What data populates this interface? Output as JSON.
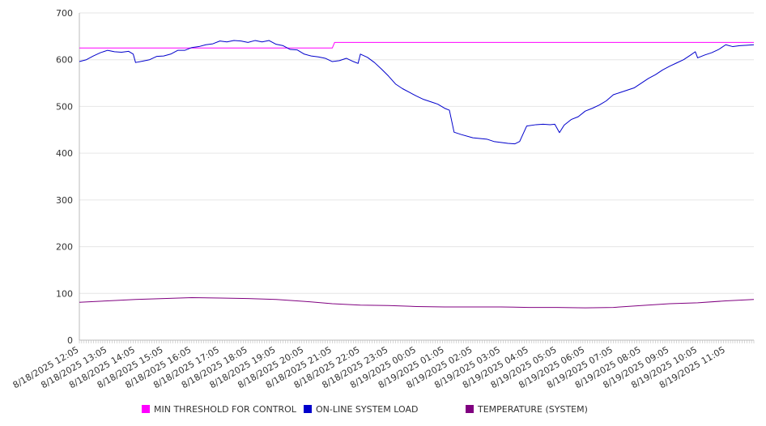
{
  "colors": {
    "background": "#ffffff",
    "grid": "#e6e6e6",
    "axis": "#bbbbbb",
    "text": "#333333"
  },
  "chart_data": {
    "type": "line",
    "title": "",
    "xlabel": "",
    "ylabel": "",
    "ylim": [
      0,
      700
    ],
    "yticks": [
      0,
      100,
      200,
      300,
      400,
      500,
      600,
      700
    ],
    "grid": true,
    "legend_position": "bottom",
    "x_tick_labels": [
      "8/18/2025 12:05",
      "8/18/2025 13:05",
      "8/18/2025 14:05",
      "8/18/2025 15:05",
      "8/18/2025 16:05",
      "8/18/2025 17:05",
      "8/18/2025 18:05",
      "8/18/2025 19:05",
      "8/18/2025 20:05",
      "8/18/2025 21:05",
      "8/18/2025 22:05",
      "8/18/2025 23:05",
      "8/19/2025 00:05",
      "8/19/2025 01:05",
      "8/19/2025 02:05",
      "8/19/2025 03:05",
      "8/19/2025 04:05",
      "8/19/2025 05:05",
      "8/19/2025 06:05",
      "8/19/2025 07:05",
      "8/19/2025 08:05",
      "8/19/2025 09:05",
      "8/19/2025 10:05",
      "8/19/2025 11:05"
    ],
    "series": [
      {
        "name": "MIN THRESHOLD FOR CONTROL",
        "color": "#ff00ff",
        "points": [
          [
            "8/18/2025 12:05",
            625
          ],
          [
            "8/18/2025 21:05",
            625
          ],
          [
            "8/18/2025 21:10",
            637
          ],
          [
            "8/19/2025 12:05",
            637
          ]
        ]
      },
      {
        "name": "ON-LINE SYSTEM LOAD",
        "color": "#0000cc",
        "points": [
          [
            "8/18/2025 12:05",
            596
          ],
          [
            "8/18/2025 12:20",
            600
          ],
          [
            "8/18/2025 12:35",
            608
          ],
          [
            "8/18/2025 12:50",
            615
          ],
          [
            "8/18/2025 13:05",
            620
          ],
          [
            "8/18/2025 13:20",
            617
          ],
          [
            "8/18/2025 13:35",
            616
          ],
          [
            "8/18/2025 13:50",
            618
          ],
          [
            "8/18/2025 14:00",
            612
          ],
          [
            "8/18/2025 14:05",
            594
          ],
          [
            "8/18/2025 14:20",
            597
          ],
          [
            "8/18/2025 14:35",
            600
          ],
          [
            "8/18/2025 14:50",
            607
          ],
          [
            "8/18/2025 15:05",
            608
          ],
          [
            "8/18/2025 15:20",
            612
          ],
          [
            "8/18/2025 15:35",
            620
          ],
          [
            "8/18/2025 15:50",
            620
          ],
          [
            "8/18/2025 16:05",
            626
          ],
          [
            "8/18/2025 16:20",
            628
          ],
          [
            "8/18/2025 16:35",
            632
          ],
          [
            "8/18/2025 16:50",
            634
          ],
          [
            "8/18/2025 17:05",
            640
          ],
          [
            "8/18/2025 17:20",
            638
          ],
          [
            "8/18/2025 17:35",
            641
          ],
          [
            "8/18/2025 17:50",
            640
          ],
          [
            "8/18/2025 18:05",
            637
          ],
          [
            "8/18/2025 18:20",
            641
          ],
          [
            "8/18/2025 18:35",
            638
          ],
          [
            "8/18/2025 18:50",
            641
          ],
          [
            "8/18/2025 19:05",
            633
          ],
          [
            "8/18/2025 19:20",
            630
          ],
          [
            "8/18/2025 19:35",
            622
          ],
          [
            "8/18/2025 19:50",
            621
          ],
          [
            "8/18/2025 20:05",
            612
          ],
          [
            "8/18/2025 20:20",
            608
          ],
          [
            "8/18/2025 20:35",
            606
          ],
          [
            "8/18/2025 20:50",
            603
          ],
          [
            "8/18/2025 21:05",
            596
          ],
          [
            "8/18/2025 21:20",
            598
          ],
          [
            "8/18/2025 21:35",
            603
          ],
          [
            "8/18/2025 21:50",
            596
          ],
          [
            "8/18/2025 22:00",
            592
          ],
          [
            "8/18/2025 22:05",
            612
          ],
          [
            "8/18/2025 22:20",
            605
          ],
          [
            "8/18/2025 22:35",
            594
          ],
          [
            "8/18/2025 22:50",
            580
          ],
          [
            "8/18/2025 23:05",
            565
          ],
          [
            "8/18/2025 23:20",
            548
          ],
          [
            "8/18/2025 23:35",
            538
          ],
          [
            "8/18/2025 23:50",
            530
          ],
          [
            "8/19/2025 00:05",
            522
          ],
          [
            "8/19/2025 00:20",
            515
          ],
          [
            "8/19/2025 00:35",
            510
          ],
          [
            "8/19/2025 00:50",
            505
          ],
          [
            "8/19/2025 01:05",
            496
          ],
          [
            "8/19/2025 01:15",
            492
          ],
          [
            "8/19/2025 01:25",
            445
          ],
          [
            "8/19/2025 01:40",
            440
          ],
          [
            "8/19/2025 02:05",
            433
          ],
          [
            "8/19/2025 02:35",
            430
          ],
          [
            "8/19/2025 02:50",
            425
          ],
          [
            "8/19/2025 03:05",
            423
          ],
          [
            "8/19/2025 03:20",
            421
          ],
          [
            "8/19/2025 03:35",
            420
          ],
          [
            "8/19/2025 03:45",
            425
          ],
          [
            "8/19/2025 04:00",
            458
          ],
          [
            "8/19/2025 04:20",
            461
          ],
          [
            "8/19/2025 04:35",
            462
          ],
          [
            "8/19/2025 04:50",
            461
          ],
          [
            "8/19/2025 05:00",
            462
          ],
          [
            "8/19/2025 05:10",
            444
          ],
          [
            "8/19/2025 05:20",
            460
          ],
          [
            "8/19/2025 05:35",
            472
          ],
          [
            "8/19/2025 05:50",
            478
          ],
          [
            "8/19/2025 06:05",
            490
          ],
          [
            "8/19/2025 06:20",
            496
          ],
          [
            "8/19/2025 06:35",
            503
          ],
          [
            "8/19/2025 06:50",
            512
          ],
          [
            "8/19/2025 07:05",
            525
          ],
          [
            "8/19/2025 07:20",
            530
          ],
          [
            "8/19/2025 07:35",
            535
          ],
          [
            "8/19/2025 07:50",
            540
          ],
          [
            "8/19/2025 08:05",
            550
          ],
          [
            "8/19/2025 08:20",
            560
          ],
          [
            "8/19/2025 08:35",
            568
          ],
          [
            "8/19/2025 08:50",
            578
          ],
          [
            "8/19/2025 09:05",
            586
          ],
          [
            "8/19/2025 09:20",
            593
          ],
          [
            "8/19/2025 09:35",
            600
          ],
          [
            "8/19/2025 09:50",
            610
          ],
          [
            "8/19/2025 10:00",
            617
          ],
          [
            "8/19/2025 10:05",
            604
          ],
          [
            "8/19/2025 10:20",
            610
          ],
          [
            "8/19/2025 10:35",
            615
          ],
          [
            "8/19/2025 10:50",
            622
          ],
          [
            "8/19/2025 11:05",
            632
          ],
          [
            "8/19/2025 11:20",
            628
          ],
          [
            "8/19/2025 11:35",
            630
          ],
          [
            "8/19/2025 11:50",
            631
          ],
          [
            "8/19/2025 12:05",
            632
          ]
        ]
      },
      {
        "name": "TEMPERATURE (SYSTEM)",
        "color": "#800080",
        "points": [
          [
            "8/18/2025 12:05",
            81
          ],
          [
            "8/18/2025 13:05",
            84
          ],
          [
            "8/18/2025 14:05",
            87
          ],
          [
            "8/18/2025 15:05",
            89
          ],
          [
            "8/18/2025 16:05",
            91
          ],
          [
            "8/18/2025 17:05",
            90
          ],
          [
            "8/18/2025 18:05",
            89
          ],
          [
            "8/18/2025 19:05",
            87
          ],
          [
            "8/18/2025 20:05",
            83
          ],
          [
            "8/18/2025 21:05",
            78
          ],
          [
            "8/18/2025 22:05",
            75
          ],
          [
            "8/18/2025 23:05",
            74
          ],
          [
            "8/19/2025 00:05",
            72
          ],
          [
            "8/19/2025 01:05",
            71
          ],
          [
            "8/19/2025 02:05",
            71
          ],
          [
            "8/19/2025 03:05",
            71
          ],
          [
            "8/19/2025 04:05",
            70
          ],
          [
            "8/19/2025 05:05",
            70
          ],
          [
            "8/19/2025 06:05",
            69
          ],
          [
            "8/19/2025 07:05",
            70
          ],
          [
            "8/19/2025 08:05",
            74
          ],
          [
            "8/19/2025 09:05",
            78
          ],
          [
            "8/19/2025 10:05",
            80
          ],
          [
            "8/19/2025 11:05",
            84
          ],
          [
            "8/19/2025 12:05",
            87
          ]
        ]
      }
    ]
  }
}
